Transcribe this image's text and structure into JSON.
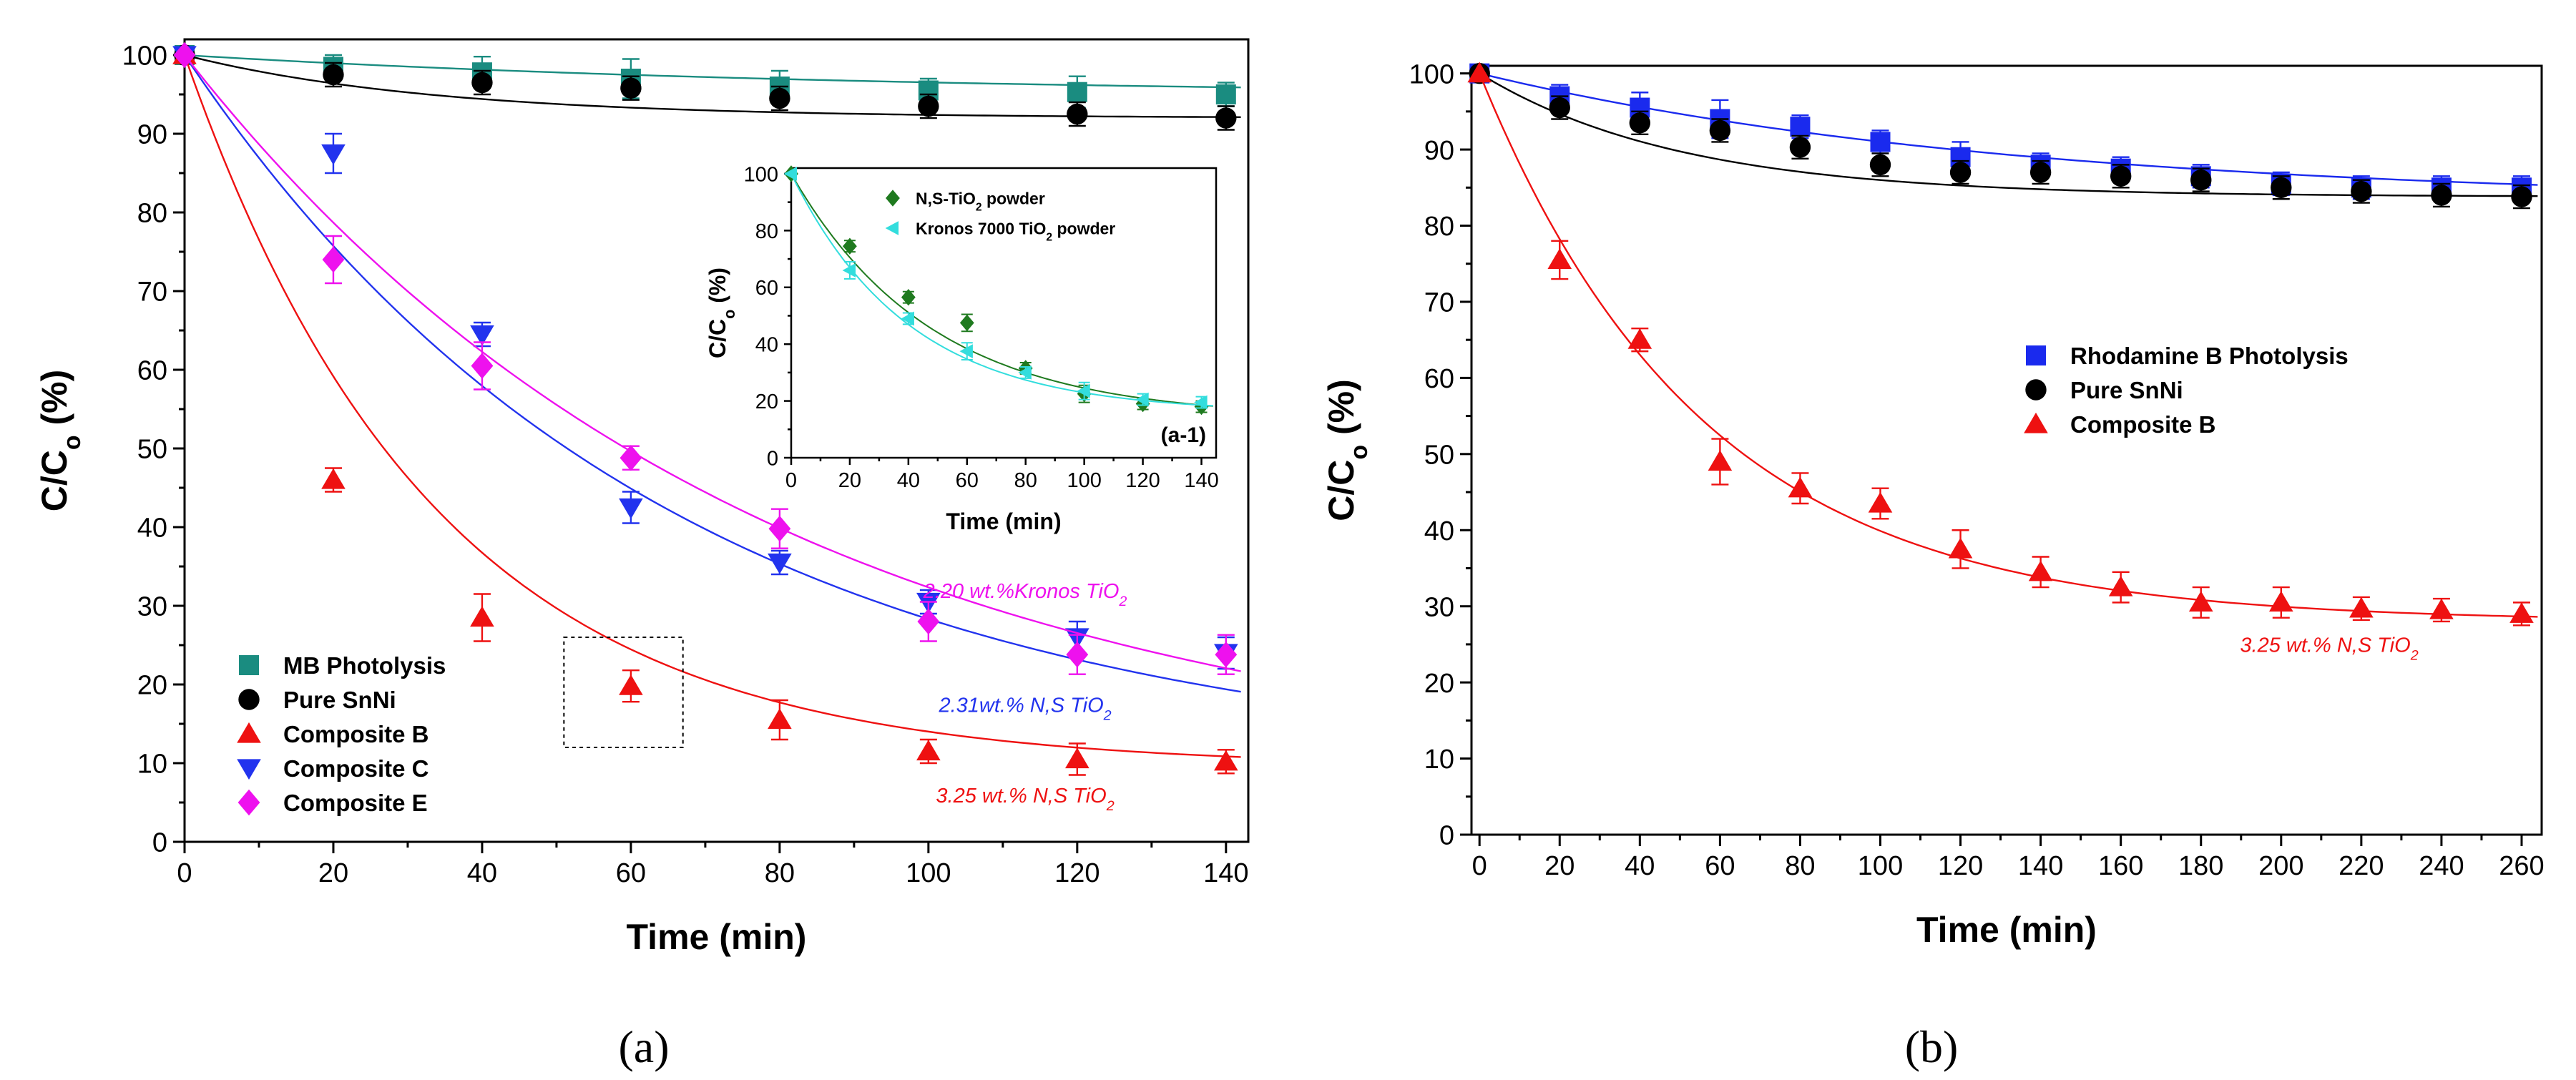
{
  "chart_data": [
    {
      "id": "a",
      "panel_label": "(a)",
      "type": "scatter",
      "xlabel": "Time (min)",
      "ylabel": "C/C",
      "ylabel_sub": "o",
      "ylabel_unit": " (%)",
      "xlim": [
        0,
        143
      ],
      "ylim": [
        0,
        102
      ],
      "xticks": [
        0,
        20,
        40,
        60,
        80,
        100,
        120,
        140
      ],
      "yticks": [
        0,
        10,
        20,
        30,
        40,
        50,
        60,
        70,
        80,
        90,
        100
      ],
      "legend_position": "bottom-left",
      "series": [
        {
          "name": "MB Photolysis",
          "marker": "square",
          "color": "#1a8c80",
          "x": [
            0,
            20,
            40,
            60,
            80,
            100,
            120,
            140
          ],
          "y": [
            100,
            98.5,
            97.8,
            97.0,
            96.0,
            95.5,
            95.3,
            95.0
          ],
          "err": [
            0,
            1.5,
            2.0,
            2.5,
            2.0,
            1.5,
            2.0,
            1.5
          ],
          "fit": {
            "a": 5.2,
            "k": 0.011
          }
        },
        {
          "name": "Pure SnNi",
          "marker": "circle",
          "color": "#000000",
          "x": [
            0,
            20,
            40,
            60,
            80,
            100,
            120,
            140
          ],
          "y": [
            100,
            97.5,
            96.5,
            95.8,
            94.5,
            93.5,
            92.5,
            92.0
          ],
          "err": [
            0,
            1.5,
            1.5,
            1.5,
            1.5,
            1.5,
            1.5,
            1.5
          ],
          "fit": {
            "a": 8.0,
            "k": 0.03
          }
        },
        {
          "name": "Composite B",
          "marker": "triangle-up",
          "color": "#ee1111",
          "x": [
            0,
            20,
            40,
            60,
            80,
            100,
            120,
            140
          ],
          "y": [
            100,
            46.0,
            28.5,
            19.8,
            15.5,
            11.5,
            10.5,
            10.2
          ],
          "err": [
            0,
            1.5,
            3.0,
            2.0,
            2.5,
            1.5,
            2.0,
            1.5
          ],
          "fit": {
            "a": 90.5,
            "k": 0.03
          }
        },
        {
          "name": "Composite C",
          "marker": "triangle-down",
          "color": "#2233ee",
          "x": [
            0,
            20,
            40,
            60,
            80,
            100,
            120,
            140
          ],
          "y": [
            100,
            87.5,
            64.5,
            42.5,
            35.5,
            30.5,
            26.0,
            24.0
          ],
          "err": [
            0,
            2.5,
            1.5,
            2.0,
            1.5,
            1.5,
            2.0,
            2.0
          ],
          "fit": {
            "a": 91.0,
            "k": 0.0155
          }
        },
        {
          "name": "Composite E",
          "marker": "diamond",
          "color": "#ee11ee",
          "x": [
            0,
            20,
            40,
            60,
            80,
            100,
            120,
            140
          ],
          "y": [
            100,
            74.0,
            60.5,
            48.8,
            39.8,
            28.0,
            23.8,
            23.8
          ],
          "err": [
            0,
            3.0,
            3.0,
            1.5,
            2.5,
            2.5,
            2.5,
            2.5
          ],
          "fit": {
            "a": 93.0,
            "k": 0.013
          }
        }
      ],
      "annotations": [
        {
          "text": "2.20 wt.%Kronos TiO",
          "sub": "2",
          "color": "#ee11ee",
          "x": 113,
          "y": 31
        },
        {
          "text": "2.31wt.% N,S TiO",
          "sub": "2",
          "color": "#2233ee",
          "x": 113,
          "y": 16.5
        },
        {
          "text": "3.25 wt.% N,S TiO",
          "sub": "2",
          "color": "#ee1111",
          "x": 113,
          "y": 5
        }
      ],
      "highlight_box": {
        "x": [
          51,
          67
        ],
        "y": [
          12,
          26
        ]
      },
      "inset": {
        "label": "(a-1)",
        "type": "scatter",
        "xlabel": "Time (min)",
        "ylabel": "C/C",
        "ylabel_sub": "o",
        "ylabel_unit": " (%)",
        "xlim": [
          0,
          145
        ],
        "ylim": [
          0,
          102
        ],
        "xticks": [
          0,
          20,
          40,
          60,
          80,
          100,
          120,
          140
        ],
        "yticks": [
          0,
          20,
          40,
          60,
          80,
          100
        ],
        "series": [
          {
            "name": "N,S-TiO",
            "name_sub": "2",
            "name_suffix": " powder",
            "marker": "diamond",
            "color": "#1f7a1f",
            "x": [
              0,
              20,
              40,
              60,
              80,
              100,
              120,
              140
            ],
            "y": [
              100,
              74.5,
              56.5,
              47.5,
              31.5,
              22.5,
              19.0,
              18.0
            ],
            "err": [
              0,
              2,
              2,
              3,
              2,
              3,
              2,
              2
            ],
            "fit": {
              "a": 86,
              "k": 0.021,
              "c": 14
            }
          },
          {
            "name": "Kronos 7000 TiO",
            "name_sub": "2",
            "name_suffix": " powder",
            "marker": "triangle-left",
            "color": "#33dddd",
            "x": [
              0,
              20,
              40,
              60,
              80,
              100,
              120,
              140
            ],
            "y": [
              100,
              66.0,
              49.0,
              37.5,
              30.0,
              23.5,
              20.5,
              19.5
            ],
            "err": [
              0,
              3,
              2,
              3,
              2,
              3,
              2,
              2
            ],
            "fit": {
              "a": 84,
              "k": 0.025,
              "c": 16
            }
          }
        ]
      }
    },
    {
      "id": "b",
      "panel_label": "(b)",
      "type": "scatter",
      "xlabel": "Time (min)",
      "ylabel": "C/C",
      "ylabel_sub": "o",
      "ylabel_unit": " (%)",
      "xlim": [
        -2,
        265
      ],
      "ylim": [
        0,
        101
      ],
      "xticks": [
        0,
        20,
        40,
        60,
        80,
        100,
        120,
        140,
        160,
        180,
        200,
        220,
        240,
        260
      ],
      "yticks": [
        0,
        10,
        20,
        30,
        40,
        50,
        60,
        70,
        80,
        90,
        100
      ],
      "legend_position": "center",
      "series": [
        {
          "name": "Rhodamine B Photolysis",
          "marker": "square",
          "color": "#1a2aee",
          "x": [
            0,
            20,
            40,
            60,
            80,
            100,
            120,
            140,
            160,
            180,
            200,
            220,
            240,
            260
          ],
          "y": [
            100,
            97.0,
            95.5,
            94.0,
            93.0,
            91.0,
            89.0,
            88.0,
            87.5,
            86.5,
            85.5,
            85.0,
            85.0,
            85.0
          ],
          "err": [
            0,
            1.5,
            2.0,
            2.5,
            1.5,
            1.5,
            2.0,
            1.5,
            1.5,
            1.5,
            1.5,
            1.5,
            1.5,
            1.5
          ],
          "fit": {
            "a": 17,
            "k": 0.0075,
            "c": 83
          }
        },
        {
          "name": "Pure SnNi",
          "marker": "circle",
          "color": "#000000",
          "x": [
            0,
            20,
            40,
            60,
            80,
            100,
            120,
            140,
            160,
            180,
            200,
            220,
            240,
            260
          ],
          "y": [
            100,
            95.5,
            93.5,
            92.5,
            90.3,
            88.0,
            87.0,
            87.0,
            86.5,
            86.0,
            85.0,
            84.5,
            84.0,
            83.8
          ],
          "err": [
            0,
            1.5,
            1.5,
            1.5,
            1.5,
            1.5,
            1.5,
            1.5,
            1.5,
            1.5,
            1.5,
            1.5,
            1.5,
            1.5
          ],
          "fit": {
            "a": 16.2,
            "k": 0.02,
            "c": 83.8
          }
        },
        {
          "name": "Composite B",
          "marker": "triangle-up",
          "color": "#ee1111",
          "x": [
            0,
            20,
            40,
            60,
            80,
            100,
            120,
            140,
            160,
            180,
            200,
            220,
            240,
            260
          ],
          "y": [
            100,
            75.5,
            65.0,
            49.0,
            45.5,
            43.5,
            37.5,
            34.5,
            32.5,
            30.5,
            30.5,
            29.7,
            29.5,
            29.0
          ],
          "err": [
            0,
            2.5,
            1.5,
            3.0,
            2.0,
            2.0,
            2.5,
            2.0,
            2.0,
            2.0,
            2.0,
            1.5,
            1.5,
            1.5
          ],
          "fit": {
            "a": 72,
            "k": 0.018,
            "c": 28
          }
        }
      ],
      "annotations": [
        {
          "text": "3.25 wt.% N,S TiO",
          "sub": "2",
          "color": "#ee1111",
          "x": 212,
          "y": 24
        }
      ]
    }
  ]
}
